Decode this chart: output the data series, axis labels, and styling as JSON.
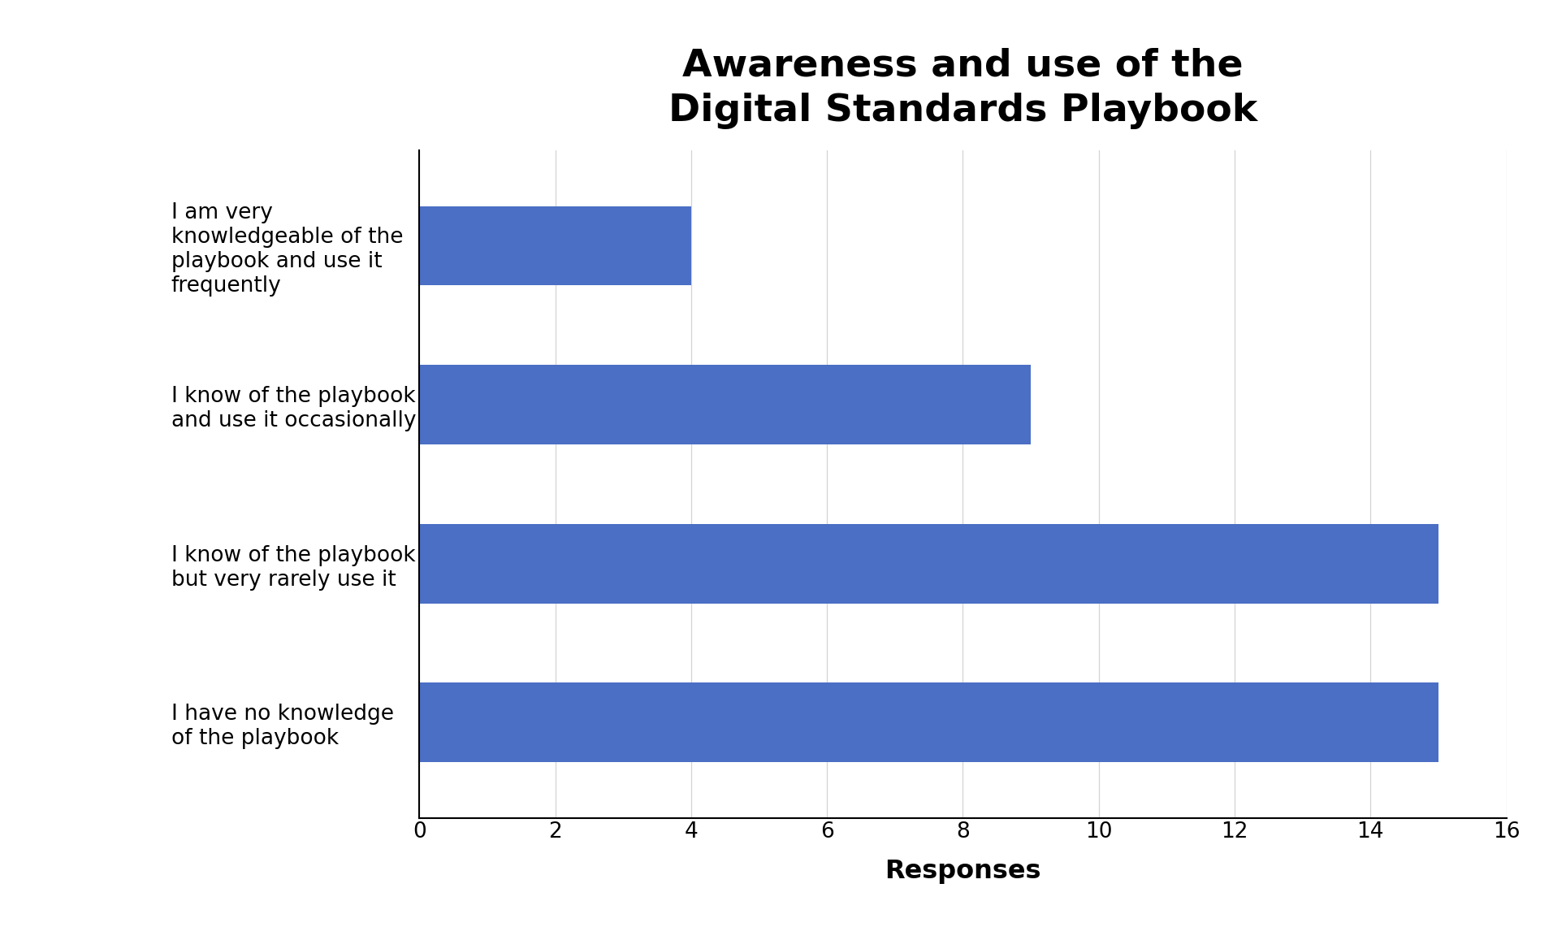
{
  "title": "Awareness and use of the\nDigital Standards Playbook",
  "categories": [
    "I have no knowledge\nof the playbook",
    "I know of the playbook\nbut very rarely use it",
    "I know of the playbook\nand use it occasionally",
    "I am very\nknowledgeable of the\nplaybook and use it\nfrequently"
  ],
  "values": [
    15,
    15,
    9,
    4
  ],
  "bar_color": "#4a6fc4",
  "xlabel": "Responses",
  "xlim": [
    0,
    16
  ],
  "xticks": [
    0,
    2,
    4,
    6,
    8,
    10,
    12,
    14,
    16
  ],
  "background_color": "#ffffff",
  "title_fontsize": 34,
  "label_fontsize": 19,
  "tick_fontsize": 19,
  "xlabel_fontsize": 23
}
